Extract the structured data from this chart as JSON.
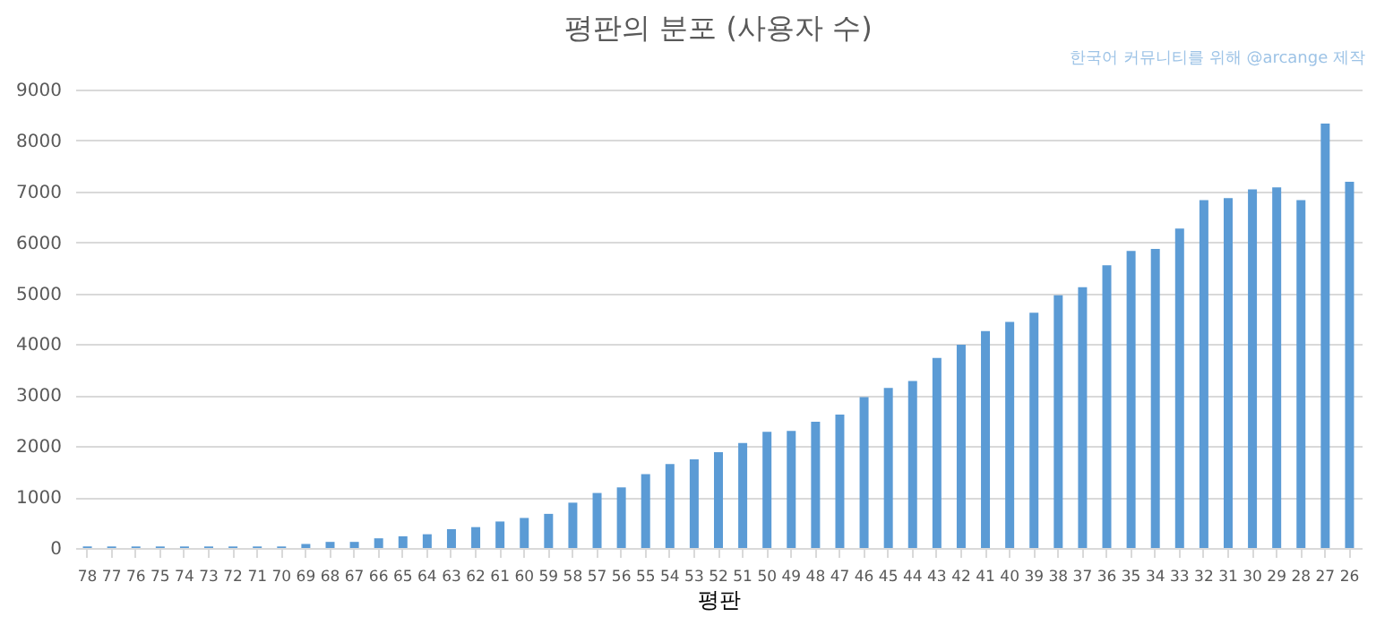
{
  "chart_data": {
    "type": "bar",
    "title": "평판의 분포 (사용자 수)",
    "xlabel": "평판",
    "annotations": [
      "한국어 커뮤니티를 위해 @arcange 제작"
    ],
    "categories": [
      "78",
      "77",
      "76",
      "75",
      "74",
      "73",
      "72",
      "71",
      "70",
      "69",
      "68",
      "67",
      "66",
      "65",
      "64",
      "63",
      "62",
      "61",
      "60",
      "59",
      "58",
      "57",
      "56",
      "55",
      "54",
      "53",
      "52",
      "51",
      "50",
      "49",
      "48",
      "47",
      "46",
      "45",
      "44",
      "43",
      "42",
      "41",
      "40",
      "39",
      "38",
      "37",
      "36",
      "35",
      "34",
      "33",
      "32",
      "31",
      "30",
      "29",
      "28",
      "27",
      "26"
    ],
    "values": [
      30,
      30,
      30,
      30,
      30,
      30,
      30,
      30,
      30,
      80,
      120,
      120,
      190,
      230,
      270,
      370,
      410,
      520,
      590,
      670,
      890,
      1080,
      1190,
      1450,
      1650,
      1740,
      1880,
      2060,
      2280,
      2300,
      2480,
      2620,
      2960,
      3140,
      3280,
      3730,
      3990,
      4260,
      4440,
      4620,
      4960,
      5120,
      5550,
      5830,
      5870,
      6270,
      6830,
      6870,
      7040,
      7080,
      6830,
      8330,
      7190
    ],
    "color": "#5b9bd5",
    "ylim": [
      0,
      9000
    ],
    "yticks": [
      0,
      1000,
      2000,
      3000,
      4000,
      5000,
      6000,
      7000,
      8000,
      9000
    ],
    "grid": "y"
  }
}
